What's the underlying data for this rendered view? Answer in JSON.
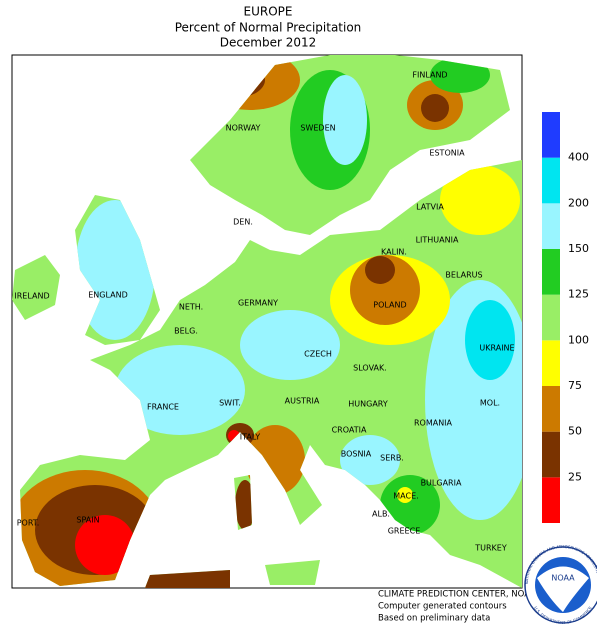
{
  "header": {
    "region": "EUROPE",
    "title": "Percent of Normal Precipitation",
    "period": "December 2012"
  },
  "countries": [
    "FINLAND",
    "NORWAY",
    "SWEDEN",
    "ESTONIA",
    "LATVIA",
    "DEN.",
    "LITHUANIA",
    "KALIN.",
    "BELARUS",
    "IRELAND",
    "ENGLAND",
    "NETH.",
    "GERMANY",
    "POLAND",
    "BELG.",
    "UKRAINE",
    "CZECH",
    "SLOVAK.",
    "FRANCE",
    "SWIT.",
    "AUSTRIA",
    "HUNGARY",
    "MOL.",
    "ROMANIA",
    "CROATIA",
    "ITALY",
    "BOSNIA",
    "SERB.",
    "BULGARIA",
    "MACE.",
    "ALB.",
    "PORT.",
    "SPAIN",
    "GREECE",
    "TURKEY"
  ],
  "legend": {
    "colors": [
      "#ff0000",
      "#7a3300",
      "#cc7a00",
      "#ffff00",
      "#99ee66",
      "#22cc22",
      "#99f5ff",
      "#00e5f0",
      "#1f3cff"
    ],
    "ticks": [
      "25",
      "50",
      "75",
      "100",
      "125",
      "150",
      "200",
      "400"
    ]
  },
  "footer": [
    "CLIMATE PREDICTION CENTER, NOAA",
    "Computer generated contours",
    "Based on preliminary data"
  ],
  "logo": {
    "text": "NOAA",
    "ring_top": "NATIONAL OCEANIC AND ATMOSPHERIC ADMINISTRATION",
    "ring_bottom": "U.S. DEPARTMENT OF COMMERCE"
  }
}
